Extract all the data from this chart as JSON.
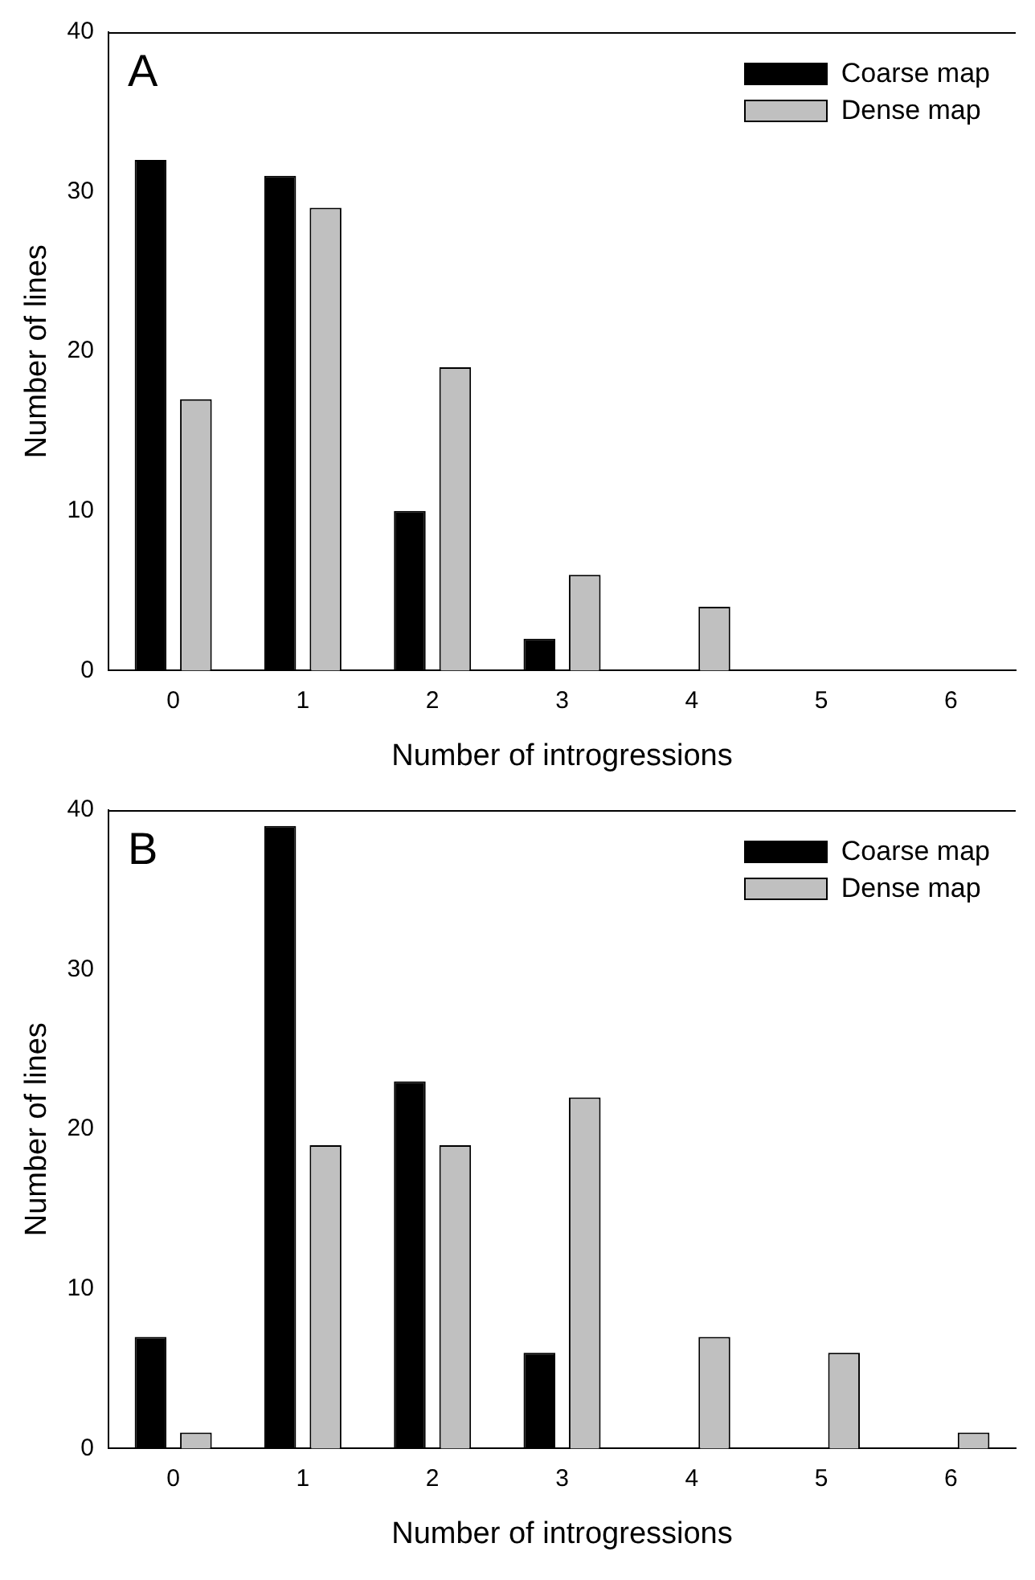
{
  "chart_data": [
    {
      "type": "bar",
      "annotations": [
        "A"
      ],
      "xlabel": "Number of introgressions",
      "ylabel": "Number of lines",
      "categories": [
        "0",
        "1",
        "2",
        "3",
        "4",
        "5",
        "6"
      ],
      "series": [
        {
          "name": "Coarse map",
          "color": "#000000",
          "values": [
            32,
            31,
            10,
            2,
            0,
            0,
            0
          ]
        },
        {
          "name": "Dense map",
          "color": "#c0c0c0",
          "values": [
            17,
            29,
            19,
            6,
            4,
            0,
            0
          ]
        }
      ],
      "ylim": [
        0,
        40
      ],
      "yticks": [
        0,
        10,
        20,
        30,
        40
      ],
      "grid": false,
      "legend": "top right"
    },
    {
      "type": "bar",
      "annotations": [
        "B"
      ],
      "xlabel": "Number of introgressions",
      "ylabel": "Number of lines",
      "categories": [
        "0",
        "1",
        "2",
        "3",
        "4",
        "5",
        "6"
      ],
      "series": [
        {
          "name": "Coarse map",
          "color": "#000000",
          "values": [
            7,
            39,
            23,
            6,
            0,
            0,
            0
          ]
        },
        {
          "name": "Dense map",
          "color": "#c0c0c0",
          "values": [
            1,
            19,
            19,
            22,
            7,
            6,
            1
          ]
        }
      ],
      "ylim": [
        0,
        40
      ],
      "yticks": [
        0,
        10,
        20,
        30,
        40
      ],
      "grid": false,
      "legend": "top right"
    }
  ]
}
